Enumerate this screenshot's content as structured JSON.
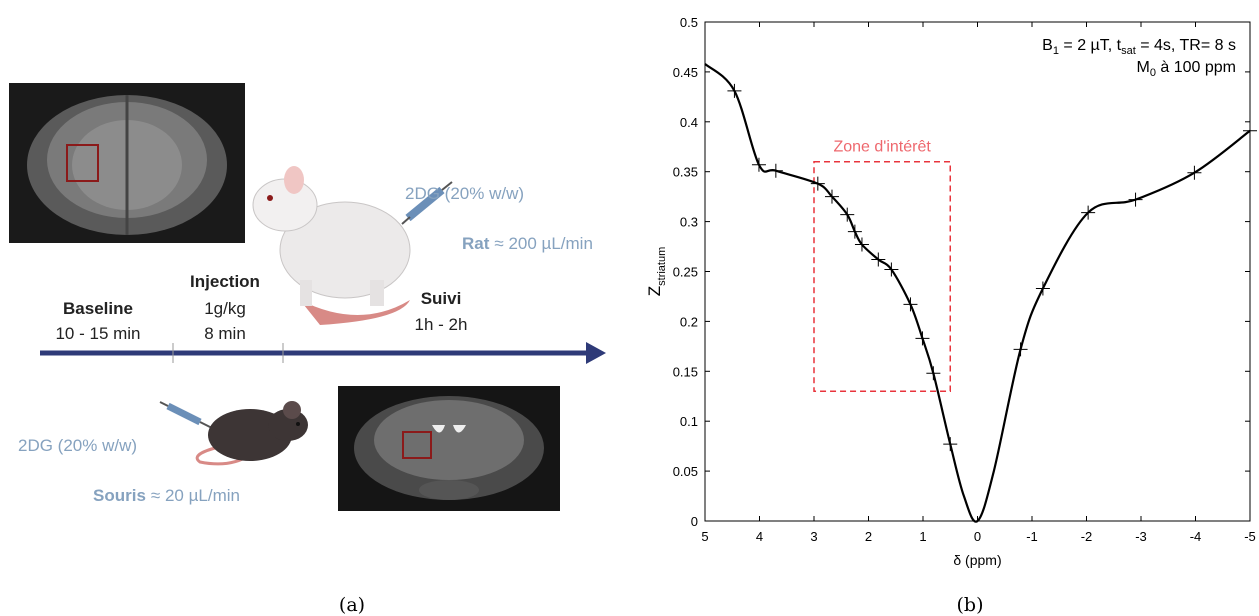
{
  "diagram": {
    "rat": {
      "dose": "2DG (20% w/w)",
      "species": "Rat",
      "rate": "≈ 200 µL/min"
    },
    "mouse": {
      "dose": "2DG (20% w/w)",
      "species": "Souris",
      "rate": "≈ 20 µL/min"
    },
    "timeline": {
      "baseline": {
        "title": "Baseline",
        "time": "10 - 15 min"
      },
      "injection": {
        "title": "Injection",
        "dose": "1g/kg",
        "time": "8 min"
      },
      "follow": {
        "title": "Suivi",
        "time": "1h - 2h"
      }
    },
    "caption": "(a)"
  },
  "chart_data": {
    "type": "line",
    "caption": "(b)",
    "xlabel": "δ (ppm)",
    "ylabel": [
      "Z",
      "striatum"
    ],
    "annotation": [
      [
        "B",
        "1",
        " = 2 µT, t",
        "sat",
        " = 4s, TR= 8 s"
      ],
      [
        "M",
        "0",
        " à 100 ppm"
      ]
    ],
    "region": {
      "label": "Zone d'intérêt",
      "x": [
        3,
        0.5
      ],
      "y": [
        0.13,
        0.36
      ],
      "color": "#e8343c"
    },
    "xlim": [
      5,
      -5
    ],
    "ylim": [
      0,
      0.5
    ],
    "xticks": [
      5,
      4,
      3,
      2,
      1,
      0,
      -1,
      -2,
      -3,
      -4,
      -5
    ],
    "yticks": [
      0,
      0.05,
      0.1,
      0.15,
      0.2,
      0.25,
      0.3,
      0.35,
      0.4,
      0.45,
      0.5
    ],
    "series": [
      {
        "style": "curve",
        "color": "#000000",
        "x": [
          5,
          4.46,
          4.01,
          3.7,
          2.93,
          2.67,
          2.39,
          2.25,
          2.12,
          1.82,
          1.58,
          1.23,
          1.01,
          0.81,
          0.5,
          0.25,
          0,
          -0.3,
          -0.79,
          -1.2,
          -2.03,
          -2.9,
          -3.98,
          -5
        ],
        "values": [
          0.458,
          0.431,
          0.357,
          0.351,
          0.338,
          0.325,
          0.307,
          0.29,
          0.277,
          0.262,
          0.252,
          0.217,
          0.183,
          0.148,
          0.077,
          0.025,
          0,
          0.05,
          0.172,
          0.233,
          0.309,
          0.322,
          0.349,
          0.391
        ]
      },
      {
        "style": "markers",
        "color": "#000000",
        "x": [
          4.46,
          4.01,
          3.7,
          2.93,
          2.67,
          2.39,
          2.25,
          2.12,
          1.82,
          1.58,
          1.23,
          1.01,
          0.81,
          0.5,
          -0.79,
          -1.2,
          -2.03,
          -2.9,
          -3.98,
          -5
        ],
        "values": [
          0.431,
          0.357,
          0.351,
          0.338,
          0.325,
          0.307,
          0.29,
          0.277,
          0.262,
          0.252,
          0.217,
          0.183,
          0.148,
          0.077,
          0.172,
          0.233,
          0.309,
          0.322,
          0.349,
          0.391
        ]
      }
    ]
  }
}
